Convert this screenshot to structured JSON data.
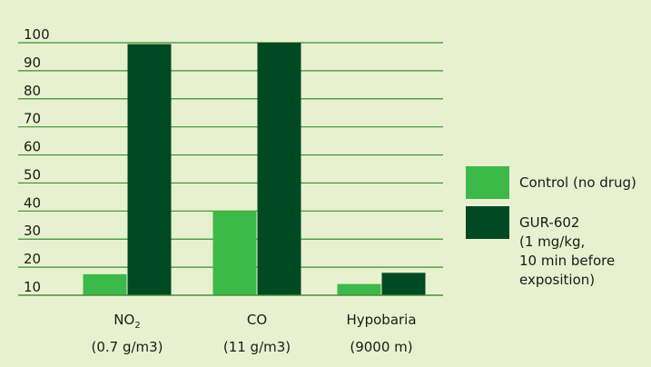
{
  "chart_data": {
    "type": "bar",
    "categories": [
      {
        "label": "NO",
        "subscript": "2",
        "sublabel": "(0.7 g/m3)"
      },
      {
        "label": "CO",
        "subscript": "",
        "sublabel": "(11 g/m3)"
      },
      {
        "label": "Hypobaria",
        "subscript": "",
        "sublabel": "(9000 m)"
      }
    ],
    "series": [
      {
        "name": "Control (no drug)",
        "values": [
          17.5,
          40,
          14
        ]
      },
      {
        "name": "GUR-602 (1 mg/kg, 10 min before exposition)",
        "values": [
          99.5,
          100,
          18
        ]
      }
    ],
    "legend": [
      {
        "lines": [
          "Control (no drug)"
        ]
      },
      {
        "lines": [
          "GUR-602",
          "(1 mg/kg,",
          "10 min before",
          "exposition)"
        ]
      }
    ],
    "yticks": [
      10,
      20,
      30,
      40,
      50,
      60,
      70,
      80,
      90,
      100
    ],
    "ylim": [
      10,
      100
    ],
    "grid": true,
    "legend_position": "right",
    "colors": {
      "background": "#e8f1cf",
      "control": "#3db94a",
      "treated": "#004a23",
      "grid": "#3a8f2d"
    }
  }
}
